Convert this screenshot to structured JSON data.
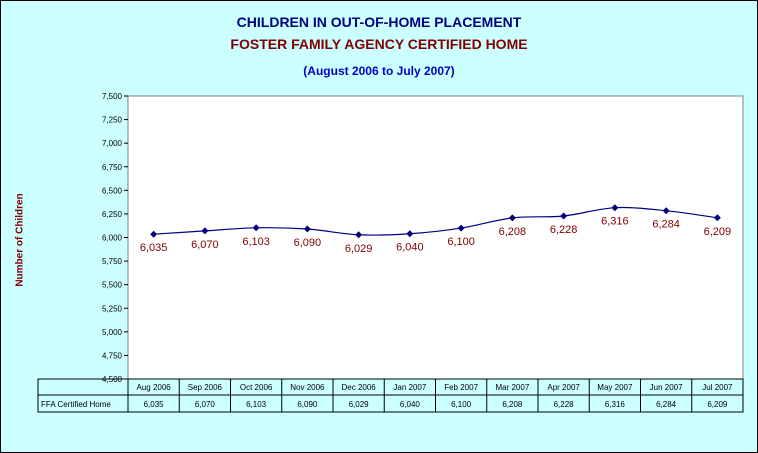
{
  "titles": {
    "line1": "CHILDREN IN OUT-OF-HOME PLACEMENT",
    "line2": "FOSTER FAMILY AGENCY CERTIFIED HOME",
    "line3": "(August 2006 to July 2007)"
  },
  "colors": {
    "background": "#ccffff",
    "plot_area": "#ffffff",
    "line": "#000080",
    "data_label": "#800000",
    "title1": "#000080",
    "title2": "#800000",
    "title3": "#0000cc"
  },
  "chart_data": {
    "type": "line",
    "categories": [
      "Aug 2006",
      "Sep 2006",
      "Oct 2006",
      "Nov 2006",
      "Dec 2006",
      "Jan 2007",
      "Feb 2007",
      "Mar 2007",
      "Apr 2007",
      "May 2007",
      "Jun 2007",
      "Jul 2007"
    ],
    "series": [
      {
        "name": "FFA Certified Home",
        "values": [
          6035,
          6070,
          6103,
          6090,
          6029,
          6040,
          6100,
          6208,
          6228,
          6316,
          6284,
          6209
        ],
        "labels": [
          "6,035",
          "6,070",
          "6,103",
          "6,090",
          "6,029",
          "6,040",
          "6,100",
          "6,208",
          "6,228",
          "6,316",
          "6,284",
          "6,209"
        ]
      }
    ],
    "title": "CHILDREN IN OUT-OF-HOME PLACEMENT",
    "ylabel": "Number of Children",
    "xlabel": "",
    "ylim": [
      4500,
      7500
    ],
    "yticks": [
      4500,
      4750,
      5000,
      5250,
      5500,
      5750,
      6000,
      6250,
      6500,
      6750,
      7000,
      7250,
      7500
    ],
    "ytick_labels": [
      "4,500",
      "4,750",
      "5,000",
      "5,250",
      "5,500",
      "5,750",
      "6,000",
      "6,250",
      "6,500",
      "6,750",
      "7,000",
      "7,250",
      "7,500"
    ],
    "grid": false,
    "data_table": true,
    "smoothed": true
  }
}
